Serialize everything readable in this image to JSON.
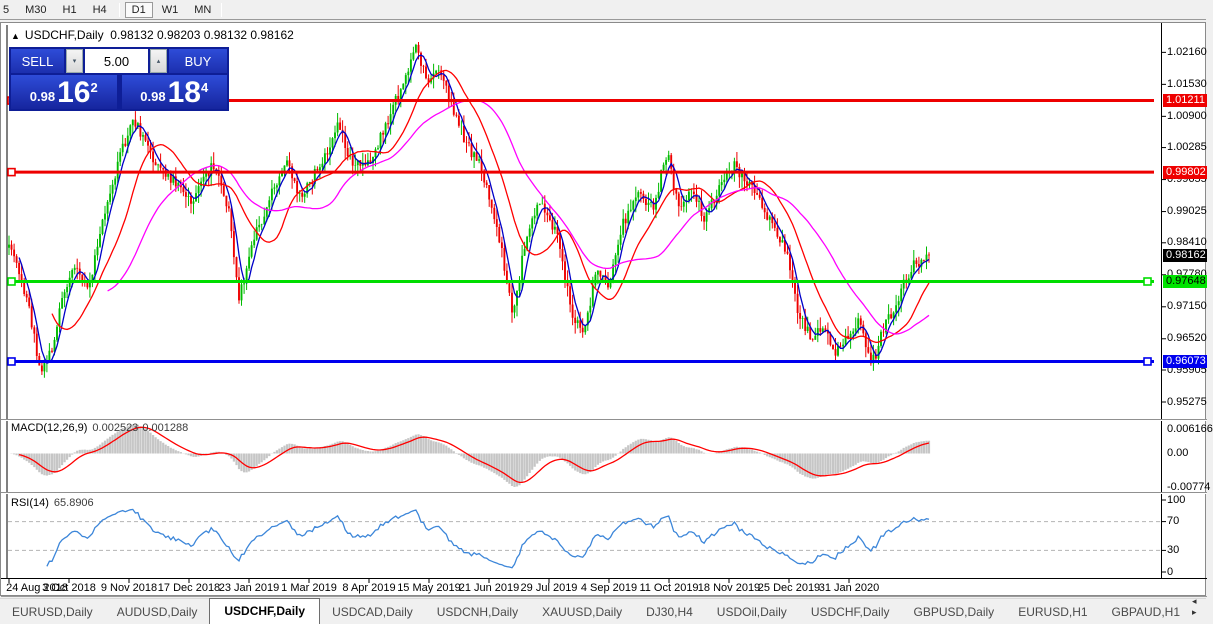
{
  "toolbar": {
    "timeframes": [
      "5",
      "M30",
      "H1",
      "H4",
      "D1",
      "W1",
      "MN"
    ],
    "active": "D1"
  },
  "window_title": {
    "arrow": "▲",
    "symbol": "USDCHF,Daily",
    "ohlc": "0.98132 0.98203 0.98132 0.98162"
  },
  "trade_panel": {
    "sell_label": "SELL",
    "buy_label": "BUY",
    "volume": "5.00",
    "spin_down": "▾",
    "spin_up": "▴",
    "sell_price": {
      "small": "0.98",
      "big": "16",
      "sup": "2"
    },
    "buy_price": {
      "small": "0.98",
      "big": "18",
      "sup": "4"
    }
  },
  "indicators": {
    "macd": {
      "label": "MACD(12,26,9)",
      "value1": "0.002523",
      "value2": "0.001288",
      "axis_top": "0.006166",
      "axis_zero": "0.00",
      "axis_bottom": "-0.00774",
      "hist_color": "#c6c6c6",
      "signal_color": "#ff0000"
    },
    "rsi": {
      "label": "RSI(14)",
      "value": "65.8906",
      "axis": [
        "100",
        "70",
        "30",
        "0"
      ],
      "level_lines": [
        70,
        30
      ],
      "line_color": "#3c86d9"
    }
  },
  "price_axis": {
    "ticks": [
      "1.02160",
      "1.01530",
      "1.00900",
      "1.00285",
      "0.99655",
      "0.99025",
      "0.98410",
      "0.97780",
      "0.97150",
      "0.96520",
      "0.95905",
      "0.95275"
    ],
    "badges": [
      {
        "text": "1.01211",
        "price": 1.01211,
        "bg": "#ee0000",
        "fg": "#ffffff"
      },
      {
        "text": "0.99802",
        "price": 0.99802,
        "bg": "#ee0000",
        "fg": "#ffffff"
      },
      {
        "text": "0.98162",
        "price": 0.98162,
        "bg": "#000000",
        "fg": "#ffffff"
      },
      {
        "text": "0.97648",
        "price": 0.97648,
        "bg": "#00e400",
        "fg": "#000000"
      },
      {
        "text": "0.96073",
        "price": 0.96073,
        "bg": "#0000ee",
        "fg": "#ffffff"
      }
    ]
  },
  "x_axis": {
    "dates": [
      "24 Aug 2018",
      "3 Oct 2018",
      "9 Nov 2018",
      "17 Dec 2018",
      "23 Jan 2019",
      "1 Mar 2019",
      "8 Apr 2019",
      "15 May 2019",
      "21 Jun 2019",
      "29 Jul 2019",
      "4 Sep 2019",
      "11 Oct 2019",
      "18 Nov 2019",
      "25 Dec 2019",
      "31 Jan 2020"
    ]
  },
  "tabs": {
    "items": [
      "EURUSD,Daily",
      "AUDUSD,Daily",
      "USDCHF,Daily",
      "USDCAD,Daily",
      "USDCNH,Daily",
      "XAUUSD,Daily",
      "DJ30,H4",
      "USDOil,Daily",
      "USDCHF,Daily",
      "GBPUSD,Daily",
      "EURUSD,H1",
      "GBPAUD,H1"
    ],
    "active_index": 2,
    "scroll_arrows": "◂ ▸"
  },
  "chart_data": {
    "type": "candlestick",
    "symbol": "USDCHF",
    "timeframe": "Daily",
    "current_bar": {
      "open": 0.98132,
      "high": 0.98203,
      "low": 0.98132,
      "close": 0.98162
    },
    "quote": {
      "bid": 0.98162,
      "ask": 0.98184,
      "volume_lots": 5.0
    },
    "n_candles": 365,
    "price_path_anchors": {
      "t": [
        0.0,
        0.02,
        0.034,
        0.045,
        0.06,
        0.072,
        0.086,
        0.1,
        0.118,
        0.135,
        0.148,
        0.16,
        0.178,
        0.2,
        0.212,
        0.225,
        0.24,
        0.25,
        0.263,
        0.285,
        0.3,
        0.318,
        0.34,
        0.358,
        0.372,
        0.388,
        0.405,
        0.425,
        0.443,
        0.455,
        0.468,
        0.482,
        0.498,
        0.513,
        0.53,
        0.548,
        0.562,
        0.578,
        0.595,
        0.612,
        0.625,
        0.638,
        0.652,
        0.668,
        0.685,
        0.7,
        0.715,
        0.728,
        0.742,
        0.757,
        0.772,
        0.788,
        0.8,
        0.815,
        0.83,
        0.845,
        0.858,
        0.872,
        0.885,
        0.898,
        0.912,
        0.925,
        0.938,
        0.952,
        0.966,
        0.98,
        1.0
      ],
      "price": [
        0.9845,
        0.973,
        0.9592,
        0.962,
        0.975,
        0.979,
        0.9748,
        0.987,
        0.9995,
        1.009,
        1.0035,
        1.0,
        0.9962,
        0.992,
        0.998,
        0.999,
        0.99,
        0.9725,
        0.983,
        0.9935,
        1.0,
        0.993,
        1.0,
        1.0078,
        1.0,
        0.9985,
        1.0055,
        1.014,
        1.0225,
        1.015,
        1.0185,
        1.01,
        1.0035,
        0.999,
        0.988,
        0.969,
        0.9855,
        0.993,
        0.986,
        0.97,
        0.966,
        0.979,
        0.975,
        0.988,
        0.9935,
        0.9905,
        1.002,
        0.991,
        0.9945,
        0.9885,
        0.9955,
        0.9995,
        0.996,
        0.9935,
        0.987,
        0.983,
        0.9705,
        0.965,
        0.9685,
        0.963,
        0.9655,
        0.969,
        0.96,
        0.968,
        0.973,
        0.979,
        0.98162
      ]
    },
    "y_axis_range": {
      "max": 1.0262,
      "min": 0.9496
    },
    "horizontal_levels": [
      {
        "price": 1.01211,
        "color": "#ee0000",
        "handles": "left"
      },
      {
        "price": 0.99802,
        "color": "#ee0000",
        "handles": "left"
      },
      {
        "price": 0.97648,
        "color": "#00dd00",
        "handles": "both"
      },
      {
        "price": 0.96073,
        "color": "#0000ee",
        "handles": "both"
      }
    ],
    "moving_averages": [
      {
        "period": 5,
        "color": "#0000c8"
      },
      {
        "period": 18,
        "color": "#ff0000"
      },
      {
        "period": 40,
        "color": "#ff00ff"
      }
    ],
    "candle_colors": {
      "up": "#00bb00",
      "down": "#ee0000"
    },
    "macd": {
      "fast": 12,
      "slow": 26,
      "signal": 9,
      "current_macd": 0.002523,
      "current_signal": 0.001288
    },
    "rsi": {
      "period": 14,
      "current": 65.8906
    }
  }
}
